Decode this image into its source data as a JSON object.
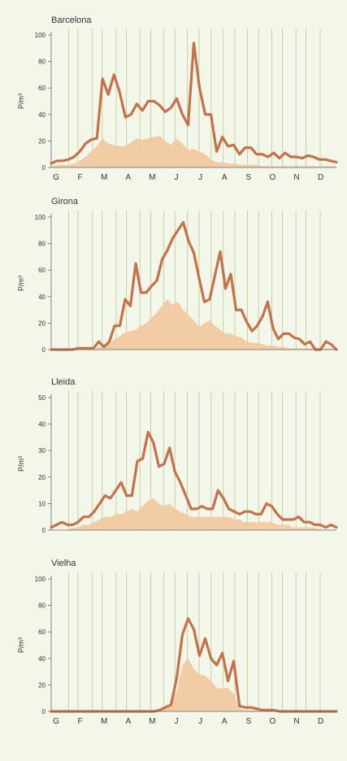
{
  "chart_data": [
    {
      "type": "line",
      "title": "Barcelona",
      "ylabel": "P/m³",
      "ylim": [
        0,
        100
      ],
      "yticks": [
        0,
        20,
        40,
        60,
        80,
        100
      ],
      "months": [
        "G",
        "F",
        "M",
        "A",
        "M",
        "J",
        "J",
        "A",
        "S",
        "O",
        "N",
        "D"
      ],
      "colors": {
        "line": "#c5714a",
        "area": "#f1c9a1"
      },
      "series": [
        {
          "values": [
            3,
            5,
            5,
            6,
            8,
            12,
            18,
            21,
            22,
            67,
            55,
            70,
            57,
            38,
            40,
            48,
            43,
            50,
            50,
            47,
            42,
            45,
            52,
            40,
            32,
            94,
            60,
            40,
            40,
            12,
            23,
            16,
            17,
            10,
            15,
            15,
            10,
            10,
            8,
            11,
            7,
            11,
            8,
            8,
            7,
            9,
            8,
            6,
            6,
            5,
            4
          ]
        },
        {
          "values": [
            1,
            2,
            2,
            2,
            3,
            5,
            8,
            12,
            16,
            22,
            18,
            17,
            16,
            16,
            19,
            22,
            21,
            22,
            23,
            24,
            20,
            17,
            22,
            18,
            13,
            14,
            12,
            10,
            6,
            4,
            4,
            3,
            3,
            2,
            2,
            2,
            2,
            1,
            1,
            1,
            1,
            1,
            1,
            1,
            1,
            1,
            1,
            1,
            1,
            1,
            1
          ]
        }
      ]
    },
    {
      "type": "line",
      "title": "Girona",
      "ylabel": "P/m³",
      "ylim": [
        0,
        100
      ],
      "yticks": [
        0,
        20,
        40,
        60,
        80,
        100
      ],
      "months": [
        "G",
        "F",
        "M",
        "A",
        "M",
        "J",
        "J",
        "A",
        "S",
        "O",
        "N",
        "D"
      ],
      "colors": {
        "line": "#c5714a",
        "area": "#f1c9a1"
      },
      "series": [
        {
          "values": [
            0,
            0,
            0,
            0,
            0,
            1,
            1,
            1,
            1,
            6,
            2,
            6,
            18,
            18,
            38,
            33,
            65,
            43,
            43,
            48,
            52,
            68,
            75,
            84,
            90,
            96,
            82,
            73,
            54,
            36,
            38,
            56,
            74,
            46,
            57,
            30,
            30,
            21,
            14,
            18,
            25,
            36,
            16,
            8,
            12,
            12,
            9,
            8,
            4,
            6,
            0,
            0,
            6,
            4,
            0
          ]
        },
        {
          "values": [
            0,
            0,
            0,
            0,
            0,
            0,
            0,
            0,
            0,
            2,
            2,
            5,
            8,
            10,
            13,
            14,
            15,
            18,
            20,
            24,
            28,
            33,
            38,
            34,
            36,
            30,
            26,
            22,
            17,
            20,
            22,
            18,
            15,
            12,
            12,
            10,
            9,
            6,
            5,
            5,
            4,
            3,
            3,
            2,
            2,
            1,
            1,
            1,
            1,
            1,
            0,
            0,
            1,
            1,
            0
          ]
        }
      ]
    },
    {
      "type": "line",
      "title": "Lleida",
      "ylabel": "P/m³",
      "ylim": [
        0,
        50
      ],
      "yticks": [
        0,
        10,
        20,
        30,
        40,
        50
      ],
      "months": [
        "G",
        "F",
        "M",
        "A",
        "M",
        "J",
        "J",
        "A",
        "S",
        "O",
        "N",
        "D"
      ],
      "colors": {
        "line": "#c5714a",
        "area": "#f1c9a1"
      },
      "series": [
        {
          "values": [
            1,
            2,
            3,
            2,
            2,
            3,
            5,
            5,
            7,
            10,
            13,
            12,
            15,
            18,
            13,
            13,
            26,
            27,
            37,
            33,
            24,
            25,
            31,
            22,
            18,
            13,
            8,
            8,
            9,
            8,
            8,
            15,
            12,
            8,
            7,
            6,
            7,
            7,
            6,
            6,
            10,
            9,
            6,
            4,
            4,
            4,
            5,
            3,
            3,
            2,
            2,
            1,
            2,
            1
          ]
        },
        {
          "values": [
            0,
            0,
            0,
            0,
            1,
            1,
            2,
            2,
            3,
            4,
            5,
            5,
            6,
            6,
            7,
            8,
            7,
            9,
            11,
            12,
            10,
            9,
            10,
            8,
            7,
            6,
            5,
            5,
            5,
            5,
            5,
            5,
            5,
            5,
            4,
            4,
            3,
            3,
            3,
            3,
            3,
            3,
            2,
            2,
            2,
            1,
            1,
            1,
            1,
            1,
            0,
            0,
            0,
            0
          ]
        }
      ]
    },
    {
      "type": "line",
      "title": "Vielha",
      "ylabel": "P/m³",
      "ylim": [
        0,
        100
      ],
      "yticks": [
        0,
        20,
        40,
        60,
        80,
        100
      ],
      "months": [
        "G",
        "F",
        "M",
        "A",
        "M",
        "J",
        "J",
        "A",
        "S",
        "O",
        "N",
        "D"
      ],
      "colors": {
        "line": "#c5714a",
        "area": "#f1c9a1"
      },
      "series": [
        {
          "values": [
            0,
            0,
            0,
            0,
            0,
            0,
            0,
            0,
            0,
            0,
            0,
            0,
            0,
            0,
            0,
            0,
            0,
            0,
            0,
            1,
            3,
            5,
            25,
            58,
            70,
            62,
            42,
            55,
            40,
            35,
            44,
            23,
            38,
            4,
            3,
            3,
            2,
            1,
            1,
            1,
            0,
            0,
            0,
            0,
            0,
            0,
            0,
            0,
            0,
            0,
            0
          ]
        },
        {
          "values": [
            0,
            0,
            0,
            0,
            0,
            0,
            0,
            0,
            0,
            0,
            0,
            0,
            0,
            0,
            0,
            0,
            0,
            0,
            0,
            1,
            2,
            4,
            15,
            35,
            40,
            32,
            28,
            27,
            23,
            18,
            17,
            18,
            13,
            2,
            1,
            1,
            1,
            0,
            0,
            0,
            0,
            0,
            0,
            0,
            0,
            0,
            0,
            0,
            0,
            0,
            0
          ]
        }
      ]
    }
  ]
}
